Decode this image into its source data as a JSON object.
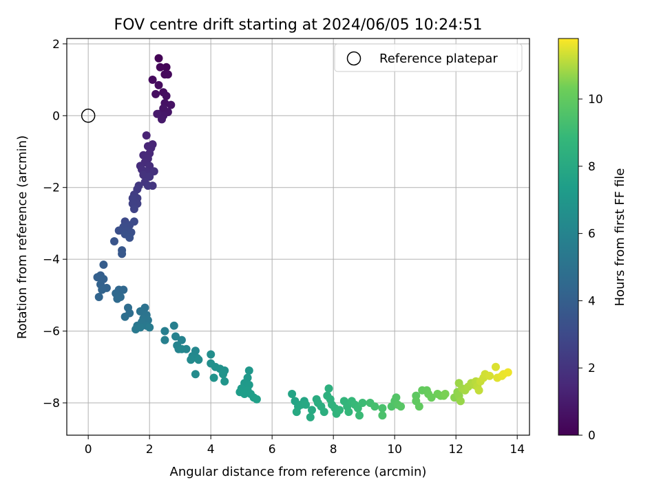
{
  "chart_data": {
    "type": "scatter",
    "title": "FOV centre drift starting at 2024/06/05 10:24:51",
    "xlabel": "Angular distance from reference (arcmin)",
    "ylabel": "Rotation from reference (arcmin)",
    "xlim": [
      -0.7,
      14.4
    ],
    "ylim": [
      -8.9,
      2.15
    ],
    "xticks": [
      0,
      2,
      4,
      6,
      8,
      10,
      12,
      14
    ],
    "yticks": [
      -8,
      -6,
      -4,
      -2,
      0,
      2
    ],
    "grid": true,
    "legend": {
      "placement": "top-right",
      "entries": [
        "Reference platepar"
      ]
    },
    "reference_point": {
      "x": 0,
      "y": 0,
      "label": "Reference platepar"
    },
    "colorbar": {
      "label": "Hours from first FF file",
      "min": 0,
      "max": 11.8,
      "ticks": [
        0,
        2,
        4,
        6,
        8,
        10
      ],
      "colormap": "viridis"
    },
    "points": [
      [
        2.3,
        1.6,
        0.1
      ],
      [
        2.55,
        1.35,
        0.15
      ],
      [
        2.35,
        1.35,
        0.2
      ],
      [
        2.5,
        1.15,
        0.25
      ],
      [
        2.6,
        1.15,
        0.3
      ],
      [
        2.1,
        1.0,
        0.35
      ],
      [
        2.3,
        0.85,
        0.4
      ],
      [
        2.45,
        0.65,
        0.45
      ],
      [
        2.2,
        0.6,
        0.5
      ],
      [
        2.55,
        0.55,
        0.55
      ],
      [
        2.5,
        0.35,
        0.6
      ],
      [
        2.7,
        0.3,
        0.65
      ],
      [
        2.45,
        0.2,
        0.7
      ],
      [
        2.6,
        0.1,
        0.75
      ],
      [
        2.3,
        0.05,
        0.8
      ],
      [
        2.45,
        0.0,
        0.85
      ],
      [
        2.4,
        -0.1,
        0.9
      ],
      [
        2.25,
        0.05,
        0.95
      ],
      [
        1.9,
        -0.55,
        1.3
      ],
      [
        2.1,
        -0.8,
        1.35
      ],
      [
        1.95,
        -0.85,
        1.4
      ],
      [
        2.05,
        -0.9,
        1.45
      ],
      [
        2.0,
        -1.05,
        1.5
      ],
      [
        1.8,
        -1.1,
        1.55
      ],
      [
        1.95,
        -1.2,
        1.6
      ],
      [
        1.85,
        -1.3,
        1.65
      ],
      [
        1.7,
        -1.4,
        1.7
      ],
      [
        2.0,
        -1.4,
        1.75
      ],
      [
        1.75,
        -1.5,
        1.8
      ],
      [
        1.9,
        -1.55,
        1.85
      ],
      [
        2.15,
        -1.55,
        1.9
      ],
      [
        1.8,
        -1.65,
        1.95
      ],
      [
        2.0,
        -1.7,
        2.0
      ],
      [
        1.85,
        -1.85,
        2.05
      ],
      [
        2.1,
        -1.95,
        2.1
      ],
      [
        1.95,
        -1.95,
        2.15
      ],
      [
        1.65,
        -1.95,
        2.2
      ],
      [
        1.6,
        -2.05,
        2.3
      ],
      [
        1.5,
        -2.2,
        2.4
      ],
      [
        1.6,
        -2.3,
        2.45
      ],
      [
        1.45,
        -2.3,
        2.5
      ],
      [
        1.6,
        -2.45,
        2.55
      ],
      [
        1.45,
        -2.45,
        2.6
      ],
      [
        1.5,
        -2.6,
        2.7
      ],
      [
        1.2,
        -2.95,
        3.0
      ],
      [
        1.5,
        -2.95,
        3.05
      ],
      [
        1.35,
        -3.05,
        3.1
      ],
      [
        1.15,
        -3.1,
        3.15
      ],
      [
        1.25,
        -3.2,
        3.2
      ],
      [
        1.0,
        -3.2,
        3.25
      ],
      [
        1.4,
        -3.25,
        3.3
      ],
      [
        1.2,
        -3.3,
        3.35
      ],
      [
        1.35,
        -3.4,
        3.4
      ],
      [
        0.85,
        -3.5,
        3.5
      ],
      [
        1.1,
        -3.75,
        3.6
      ],
      [
        1.1,
        -3.85,
        3.65
      ],
      [
        0.5,
        -4.15,
        3.9
      ],
      [
        0.4,
        -4.45,
        4.0
      ],
      [
        0.3,
        -4.5,
        4.05
      ],
      [
        0.5,
        -4.55,
        4.1
      ],
      [
        0.4,
        -4.7,
        4.15
      ],
      [
        0.6,
        -4.8,
        4.2
      ],
      [
        0.45,
        -4.85,
        4.25
      ],
      [
        0.35,
        -5.05,
        4.3
      ],
      [
        1.0,
        -4.85,
        4.4
      ],
      [
        1.15,
        -4.85,
        4.45
      ],
      [
        0.9,
        -4.95,
        4.5
      ],
      [
        1.05,
        -5.05,
        4.55
      ],
      [
        0.95,
        -5.1,
        4.6
      ],
      [
        1.3,
        -5.35,
        4.7
      ],
      [
        1.35,
        -5.5,
        4.75
      ],
      [
        1.2,
        -5.6,
        4.8
      ],
      [
        1.85,
        -5.35,
        5.0
      ],
      [
        1.7,
        -5.45,
        5.05
      ],
      [
        1.9,
        -5.55,
        5.1
      ],
      [
        1.8,
        -5.65,
        5.15
      ],
      [
        1.95,
        -5.7,
        5.2
      ],
      [
        1.75,
        -5.75,
        5.25
      ],
      [
        1.6,
        -5.85,
        5.3
      ],
      [
        1.9,
        -5.85,
        5.35
      ],
      [
        1.55,
        -5.95,
        5.4
      ],
      [
        1.7,
        -5.9,
        5.45
      ],
      [
        2.0,
        -5.9,
        5.5
      ],
      [
        2.5,
        -6.0,
        5.7
      ],
      [
        2.8,
        -5.85,
        5.75
      ],
      [
        2.5,
        -6.25,
        5.8
      ],
      [
        2.85,
        -6.15,
        5.85
      ],
      [
        3.05,
        -6.25,
        5.9
      ],
      [
        2.9,
        -6.4,
        5.95
      ],
      [
        2.95,
        -6.5,
        6.0
      ],
      [
        3.2,
        -6.5,
        6.05
      ],
      [
        3.05,
        -6.5,
        6.1
      ],
      [
        3.5,
        -6.55,
        6.15
      ],
      [
        3.4,
        -6.7,
        6.2
      ],
      [
        3.55,
        -6.75,
        6.25
      ],
      [
        3.35,
        -6.8,
        6.3
      ],
      [
        3.6,
        -6.8,
        6.35
      ],
      [
        3.5,
        -7.2,
        6.4
      ],
      [
        4.0,
        -6.65,
        6.55
      ],
      [
        4.0,
        -6.9,
        6.6
      ],
      [
        4.15,
        -7.0,
        6.65
      ],
      [
        4.3,
        -7.05,
        6.7
      ],
      [
        4.45,
        -7.1,
        6.75
      ],
      [
        4.1,
        -7.3,
        6.8
      ],
      [
        4.4,
        -7.2,
        6.85
      ],
      [
        4.45,
        -7.4,
        6.9
      ],
      [
        5.25,
        -7.1,
        7.0
      ],
      [
        5.2,
        -7.3,
        7.05
      ],
      [
        5.1,
        -7.45,
        7.1
      ],
      [
        5.25,
        -7.5,
        7.15
      ],
      [
        5.0,
        -7.6,
        7.2
      ],
      [
        5.2,
        -7.65,
        7.25
      ],
      [
        4.95,
        -7.7,
        7.3
      ],
      [
        5.1,
        -7.75,
        7.35
      ],
      [
        5.3,
        -7.75,
        7.4
      ],
      [
        5.4,
        -7.85,
        7.45
      ],
      [
        5.5,
        -7.9,
        7.5
      ],
      [
        6.65,
        -7.75,
        7.7
      ],
      [
        6.75,
        -7.95,
        7.75
      ],
      [
        7.05,
        -7.95,
        7.8
      ],
      [
        6.85,
        -8.1,
        7.85
      ],
      [
        6.95,
        -8.05,
        7.9
      ],
      [
        7.1,
        -8.05,
        7.95
      ],
      [
        6.8,
        -8.25,
        8.0
      ],
      [
        7.3,
        -8.2,
        8.05
      ],
      [
        7.25,
        -8.4,
        8.1
      ],
      [
        7.45,
        -7.9,
        8.15
      ],
      [
        7.5,
        -8.0,
        8.2
      ],
      [
        7.6,
        -8.1,
        8.25
      ],
      [
        7.7,
        -8.25,
        8.3
      ],
      [
        7.85,
        -7.6,
        8.35
      ],
      [
        7.8,
        -7.8,
        8.4
      ],
      [
        7.9,
        -7.9,
        8.45
      ],
      [
        7.95,
        -8.05,
        8.5
      ],
      [
        8.05,
        -8.15,
        8.55
      ],
      [
        8.1,
        -8.3,
        8.6
      ],
      [
        8.2,
        -8.2,
        8.65
      ],
      [
        8.35,
        -7.95,
        8.7
      ],
      [
        8.45,
        -8.1,
        8.75
      ],
      [
        8.5,
        -8.25,
        8.8
      ],
      [
        8.6,
        -7.95,
        8.85
      ],
      [
        8.7,
        -8.05,
        8.9
      ],
      [
        8.8,
        -8.15,
        8.95
      ],
      [
        8.85,
        -8.35,
        9.0
      ],
      [
        8.95,
        -8.0,
        9.05
      ],
      [
        9.2,
        -8.0,
        9.2
      ],
      [
        9.35,
        -8.1,
        9.3
      ],
      [
        9.6,
        -8.15,
        9.4
      ],
      [
        9.6,
        -8.35,
        9.45
      ],
      [
        9.9,
        -8.1,
        9.55
      ],
      [
        10.0,
        -7.95,
        9.6
      ],
      [
        10.05,
        -7.85,
        9.65
      ],
      [
        10.1,
        -8.05,
        9.7
      ],
      [
        10.2,
        -8.1,
        9.75
      ],
      [
        10.7,
        -7.8,
        9.9
      ],
      [
        10.7,
        -7.95,
        9.95
      ],
      [
        10.8,
        -8.1,
        10.0
      ],
      [
        10.9,
        -7.65,
        10.05
      ],
      [
        11.05,
        -7.65,
        10.1
      ],
      [
        11.1,
        -7.75,
        10.15
      ],
      [
        11.2,
        -7.85,
        10.2
      ],
      [
        11.4,
        -7.75,
        10.3
      ],
      [
        11.5,
        -7.8,
        10.35
      ],
      [
        11.6,
        -7.8,
        10.4
      ],
      [
        11.65,
        -7.75,
        10.45
      ],
      [
        11.95,
        -7.85,
        10.6
      ],
      [
        12.05,
        -7.7,
        10.65
      ],
      [
        12.1,
        -7.8,
        10.7
      ],
      [
        12.15,
        -7.95,
        10.75
      ],
      [
        12.1,
        -7.45,
        10.8
      ],
      [
        12.2,
        -7.6,
        10.85
      ],
      [
        12.3,
        -7.65,
        10.9
      ],
      [
        12.4,
        -7.55,
        10.95
      ],
      [
        12.5,
        -7.45,
        11.0
      ],
      [
        12.6,
        -7.5,
        11.05
      ],
      [
        12.65,
        -7.4,
        11.1
      ],
      [
        12.7,
        -7.55,
        11.15
      ],
      [
        12.75,
        -7.65,
        11.2
      ],
      [
        12.8,
        -7.4,
        11.25
      ],
      [
        12.9,
        -7.3,
        11.3
      ],
      [
        12.95,
        -7.2,
        11.35
      ],
      [
        13.1,
        -7.25,
        11.4
      ],
      [
        13.3,
        -7.0,
        11.45
      ],
      [
        13.35,
        -7.3,
        11.5
      ],
      [
        13.5,
        -7.25,
        11.55
      ],
      [
        13.55,
        -7.2,
        11.6
      ],
      [
        13.7,
        -7.15,
        11.65
      ]
    ]
  }
}
